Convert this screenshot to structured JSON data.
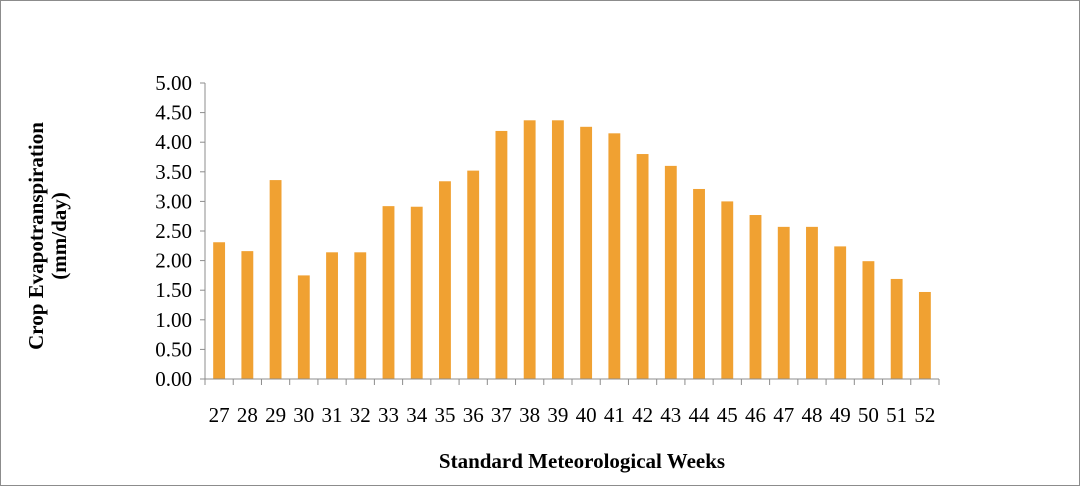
{
  "chart_data": {
    "type": "bar",
    "title": "",
    "xlabel": "Standard Meteorological Weeks",
    "ylabel_line1": "Crop Evapotranspiration",
    "ylabel_line2": "(mm/day)",
    "ylim": [
      0,
      5
    ],
    "ytick_step": 0.5,
    "yticks": [
      "0.00",
      "0.50",
      "1.00",
      "1.50",
      "2.00",
      "2.50",
      "3.00",
      "3.50",
      "4.00",
      "4.50",
      "5.00"
    ],
    "categories": [
      "27",
      "28",
      "29",
      "30",
      "31",
      "32",
      "33",
      "34",
      "35",
      "36",
      "37",
      "38",
      "39",
      "40",
      "41",
      "42",
      "43",
      "44",
      "45",
      "46",
      "47",
      "48",
      "49",
      "50",
      "51",
      "52"
    ],
    "series": [
      {
        "values": [
          2.31,
          2.16,
          3.36,
          1.75,
          2.14,
          2.14,
          2.92,
          2.91,
          3.34,
          3.52,
          4.19,
          4.37,
          4.37,
          4.26,
          4.15,
          3.8,
          3.6,
          3.21,
          3.0,
          2.77,
          2.57,
          2.57,
          2.24,
          1.99,
          1.69,
          1.47
        ],
        "color": "#F0A132"
      }
    ],
    "grid": false,
    "legend": "none"
  }
}
